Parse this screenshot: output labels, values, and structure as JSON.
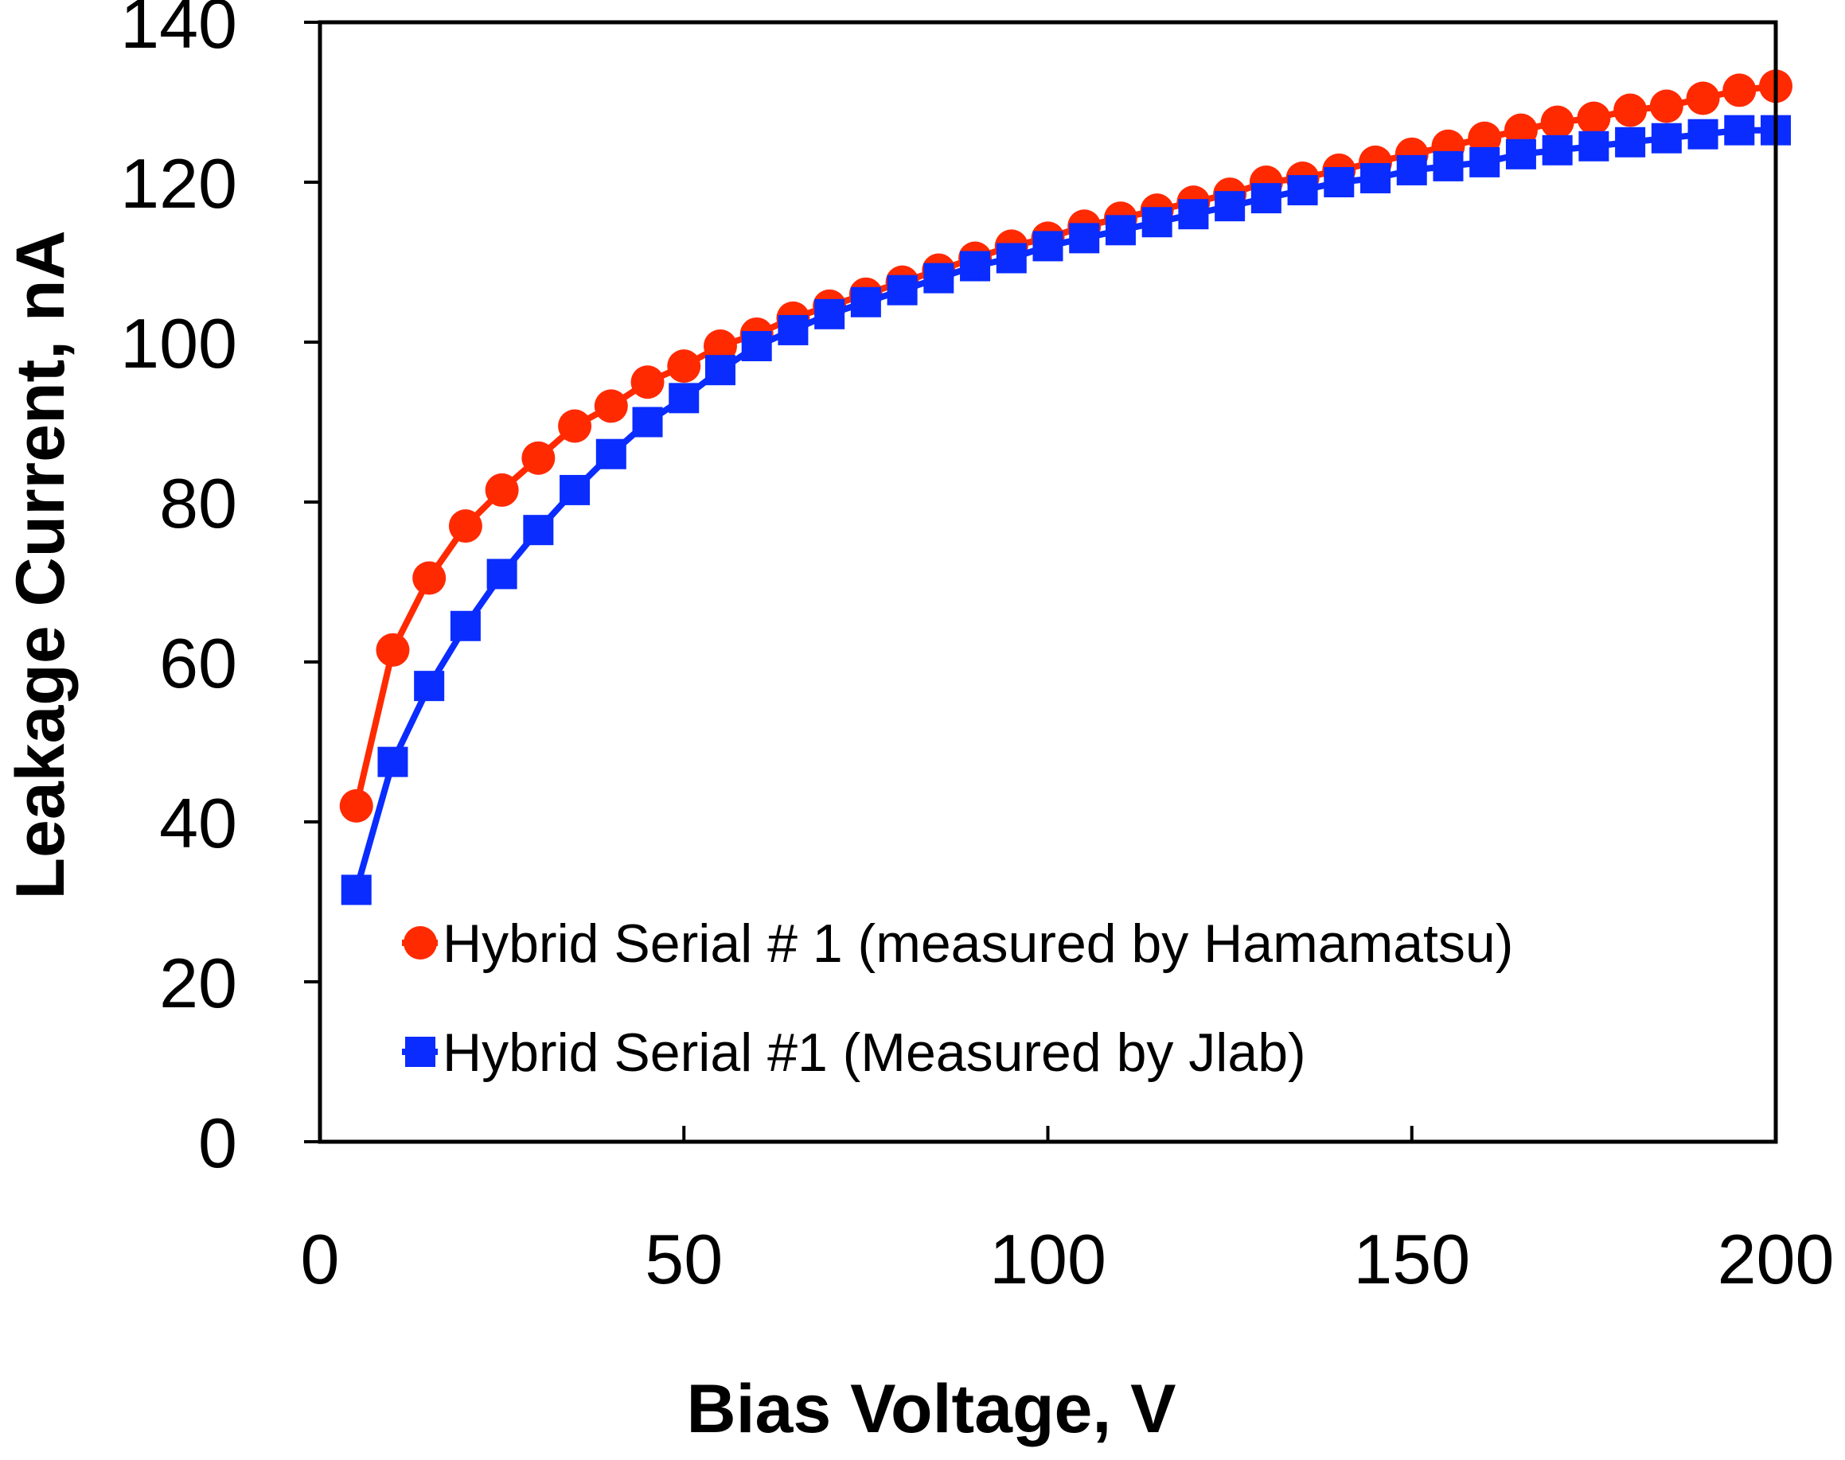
{
  "chart_data": {
    "type": "line",
    "title": "",
    "xlabel": "Bias Voltage, V",
    "ylabel": "Leakage Current, nA",
    "xlim": [
      0,
      200
    ],
    "ylim": [
      0,
      140
    ],
    "xticks": [
      0,
      50,
      100,
      150,
      200
    ],
    "yticks": [
      0,
      20,
      40,
      60,
      80,
      100,
      120,
      140
    ],
    "grid": false,
    "legend_position": "bottom-right",
    "x": [
      5,
      10,
      15,
      20,
      25,
      30,
      35,
      40,
      45,
      50,
      55,
      60,
      65,
      70,
      75,
      80,
      85,
      90,
      95,
      100,
      105,
      110,
      115,
      120,
      125,
      130,
      135,
      140,
      145,
      150,
      155,
      160,
      165,
      170,
      175,
      180,
      185,
      190,
      195,
      200
    ],
    "series": [
      {
        "name": "Hybrid Serial # 1 (measured by Hamamatsu)",
        "color": "#ff2a00",
        "marker": "circle",
        "values": [
          42,
          61.5,
          70.5,
          77,
          81.5,
          85.5,
          89.5,
          92,
          95,
          97,
          99.5,
          101,
          103,
          104.5,
          106,
          107.5,
          109,
          110.5,
          112,
          113,
          114.5,
          115.5,
          116.5,
          117.5,
          118.5,
          120,
          120.5,
          121.5,
          122.5,
          123.5,
          124.5,
          125.5,
          126.5,
          127.5,
          128,
          129,
          129.5,
          130.5,
          131.5,
          132
        ]
      },
      {
        "name": "Hybrid Serial #1 (Measured by Jlab)",
        "color": "#0a2cff",
        "marker": "square",
        "values": [
          31.5,
          47.5,
          57,
          64.5,
          71,
          76.5,
          81.5,
          86,
          90,
          93,
          96.5,
          99.5,
          101.5,
          103.5,
          105,
          106.5,
          108,
          109.5,
          110.5,
          112,
          113,
          114,
          115,
          116,
          117,
          118,
          119,
          120,
          120.5,
          121.5,
          122,
          122.5,
          123.5,
          124,
          124.5,
          125,
          125.5,
          126,
          126.5,
          126.5
        ]
      }
    ]
  }
}
